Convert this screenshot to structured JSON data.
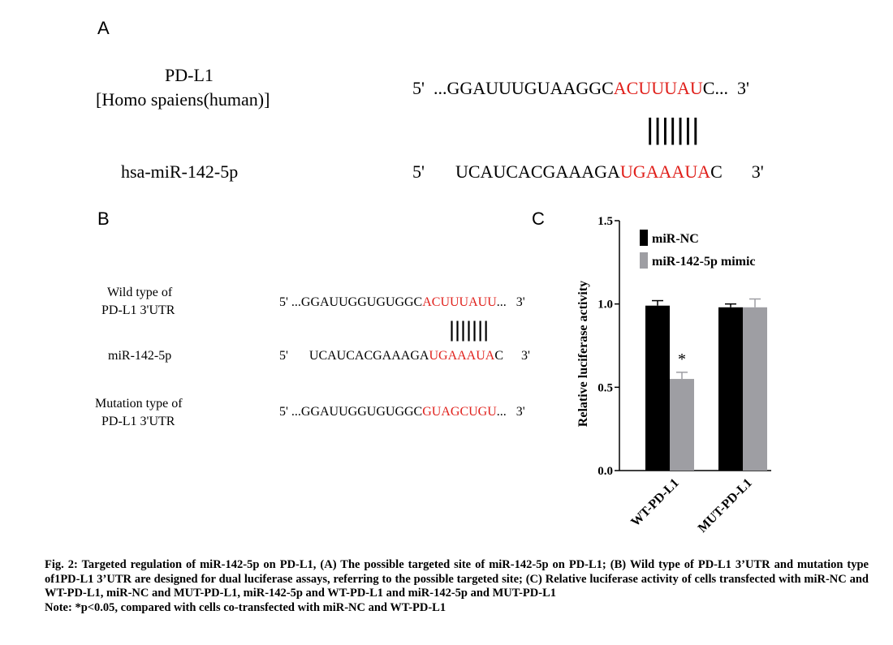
{
  "panelA": {
    "letter": "A",
    "gene_name": "PD-L1",
    "species": "[Homo spaiens(human)]",
    "mirna_name": "hsa-miR-142-5p",
    "target": {
      "five": "5'",
      "pre": "...GGAUUUGUAAGGC",
      "site": "ACUUUAU",
      "post": "C...",
      "three": "3'"
    },
    "pairing": "|||||||",
    "mirna": {
      "five": "5'",
      "pre": "UCAUCACGAAAGA",
      "site": "UGAAAUA",
      "post": "C",
      "three": "3'"
    }
  },
  "panelB": {
    "letter": "B",
    "wt_label_1": "Wild type of",
    "wt_label_2": "PD-L1 3'UTR",
    "mir_label": "miR-142-5p",
    "mut_label_1": "Mutation type of",
    "mut_label_2": "PD-L1 3'UTR",
    "wt_seq": {
      "five": "5'",
      "pre": "...GGAUUGGUGUGGC",
      "site": "ACUUUAUU",
      "post": "...",
      "three": "3'"
    },
    "pairing": "|||||||",
    "mir_seq": {
      "five": "5'",
      "pre": "UCAUCACGAAAGA",
      "site": "UGAAAUA",
      "post": "C",
      "three": "3'"
    },
    "mut_seq": {
      "five": "5'",
      "pre": "...GGAUUGGUGUGGC",
      "site": "GUAGCUGU",
      "post": "...",
      "three": "3'"
    }
  },
  "panelC": {
    "letter": "C"
  },
  "chart_data": {
    "type": "bar",
    "categories": [
      "WT-PD-L1",
      "MUT-PD-L1"
    ],
    "series": [
      {
        "name": "miR-NC",
        "values": [
          0.99,
          0.98
        ],
        "errors": [
          0.03,
          0.02
        ],
        "color": "#000000"
      },
      {
        "name": "miR-142-5p mimic",
        "values": [
          0.55,
          0.98
        ],
        "errors": [
          0.04,
          0.05
        ],
        "color": "#9e9ea3"
      }
    ],
    "ylabel": "Relative luciferase activity",
    "ylim": [
      0,
      1.5
    ],
    "yticks": [
      "0.0",
      "0.5",
      "1.0",
      "1.5"
    ],
    "annotation": "*",
    "legend_position": "top-right",
    "grid": false
  },
  "caption": {
    "main": "Fig. 2: Targeted regulation of miR-142-5p on PD-L1, (A) The possible targeted site of miR-142-5p on PD-L1; (B) Wild type of PD-L1 3’UTR and mutation type of1PD-L1 3’UTR are designed for dual luciferase assays, referring to the possible targeted site; (C) Relative luciferase activity of cells transfected with miR-NC and WT-PD-L1, miR-NC and MUT-PD-L1, miR-142-5p and WT-PD-L1 and miR-142-5p and MUT-PD-L1",
    "note": "Note: *p<0.05, compared with cells co-transfected with miR-NC and WT-PD-L1"
  }
}
